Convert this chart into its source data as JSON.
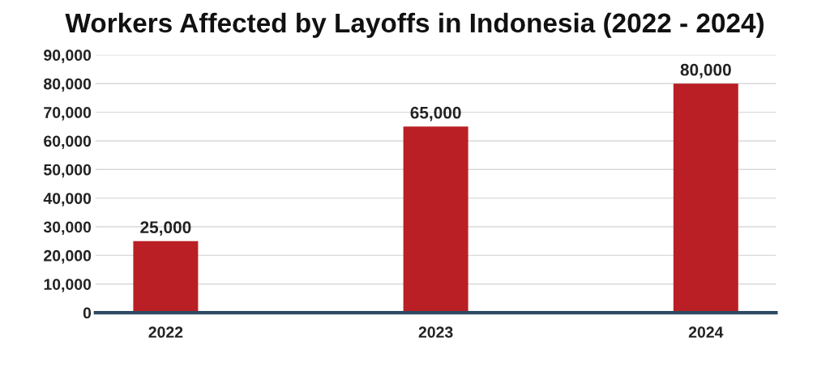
{
  "chart_data": {
    "type": "bar",
    "title": "Workers Affected by Layoffs in Indonesia (2022 - 2024)",
    "categories": [
      "2022",
      "2023",
      "2024"
    ],
    "values": [
      25000,
      65000,
      80000
    ],
    "color": "#b91f24",
    "ylim": [
      0,
      90000
    ],
    "yticks": [
      {
        "value": 0,
        "label": "0"
      },
      {
        "value": 10000,
        "label": "10,000"
      },
      {
        "value": 20000,
        "label": "20,000"
      },
      {
        "value": 30000,
        "label": "30,000"
      },
      {
        "value": 40000,
        "label": "40,000"
      },
      {
        "value": 50000,
        "label": "50,000"
      },
      {
        "value": 60000,
        "label": "60,000"
      },
      {
        "value": 70000,
        "label": "70,000"
      },
      {
        "value": 80000,
        "label": "80,000"
      },
      {
        "value": 90000,
        "label": "90,000"
      }
    ],
    "grid": "y",
    "value_labels": [
      "25,000",
      "65,000",
      "80,000"
    ],
    "legend": false
  }
}
